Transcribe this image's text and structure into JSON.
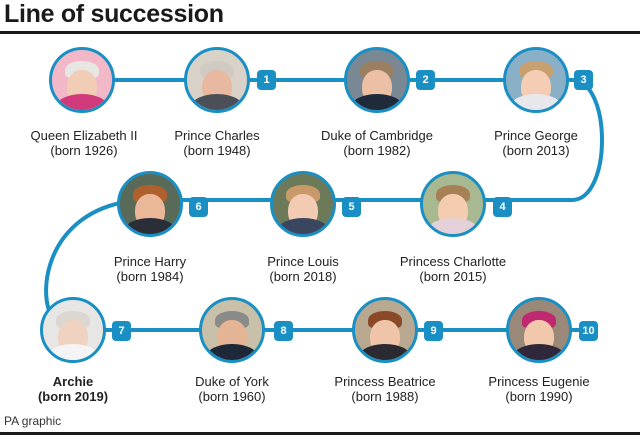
{
  "title": "Line of succession",
  "footer": "PA graphic",
  "people": [
    {
      "position": "",
      "name": "Queen Elizabeth II",
      "born": "(born 1926)",
      "bold": false
    },
    {
      "position": "1",
      "name": "Prince Charles",
      "born": "(born 1948)",
      "bold": false
    },
    {
      "position": "2",
      "name": "Duke of Cambridge",
      "born": "(born 1982)",
      "bold": false
    },
    {
      "position": "3",
      "name": "Prince George",
      "born": "(born 2013)",
      "bold": false
    },
    {
      "position": "4",
      "name": "Princess Charlotte",
      "born": "(born 2015)",
      "bold": false
    },
    {
      "position": "5",
      "name": "Prince Louis",
      "born": "(born 2018)",
      "bold": false
    },
    {
      "position": "6",
      "name": "Prince Harry",
      "born": "(born 1984)",
      "bold": false
    },
    {
      "position": "7",
      "name": "Archie",
      "born": "(born 2019)",
      "bold": true
    },
    {
      "position": "8",
      "name": "Duke of York",
      "born": "(born 1960)",
      "bold": false
    },
    {
      "position": "9",
      "name": "Princess Beatrice",
      "born": "(born 1988)",
      "bold": false
    },
    {
      "position": "10",
      "name": "Princess Eugenie",
      "born": "(born 1990)",
      "bold": false
    }
  ],
  "colors": {
    "track": "#1a8fc4",
    "text": "#222222",
    "rule": "#1a1a1a"
  }
}
